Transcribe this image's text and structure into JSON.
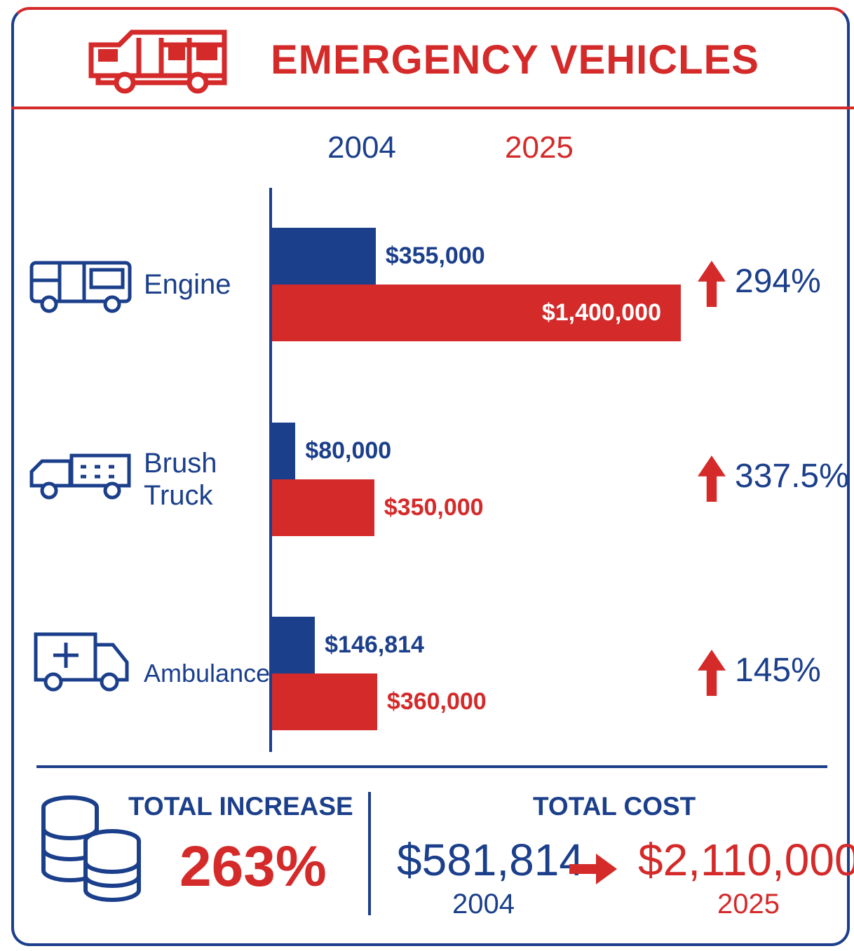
{
  "chart_data": {
    "type": "bar",
    "orientation": "horizontal",
    "title": "EMERGENCY VEHICLES",
    "categories": [
      "Engine",
      "Brush Truck",
      "Ambulance"
    ],
    "series": [
      {
        "name": "2004",
        "color": "#1b3f8b",
        "values": [
          355000,
          80000,
          146814
        ],
        "value_labels": [
          "$355,000",
          "$80,000",
          "$146,814"
        ]
      },
      {
        "name": "2025",
        "color": "#d42a2a",
        "values": [
          1400000,
          350000,
          360000
        ],
        "value_labels": [
          "$1,400,000",
          "$350,000",
          "$360,000"
        ]
      }
    ],
    "change": {
      "values": [
        294,
        337.5,
        145
      ],
      "value_labels": [
        "294%",
        "337.5%",
        "145%"
      ]
    }
  },
  "summary": {
    "increase_title": "TOTAL INCREASE",
    "increase": "263%",
    "cost_title": "TOTAL COST",
    "cost_from": "$581,814",
    "year_from": "2004",
    "cost_to": "$2,110,000",
    "year_to": "2025"
  }
}
